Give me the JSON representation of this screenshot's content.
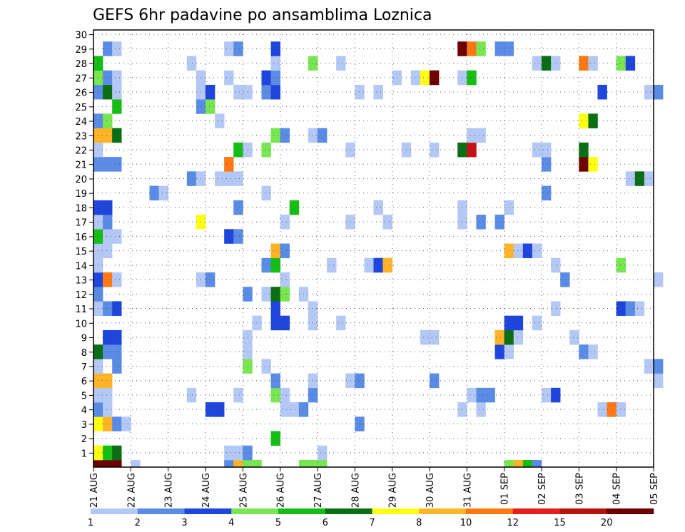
{
  "chart_data": {
    "type": "heatmap",
    "title": "GEFS 6hr padavine po ansamblima Loznica",
    "x_tick_labels": [
      "21 AUG",
      "22 AUG",
      "23 AUG",
      "24 AUG",
      "25 AUG",
      "26 AUG",
      "27 AUG",
      "28 AUG",
      "29 AUG",
      "30 AUG",
      "31 AUG",
      "01 SEP",
      "02 SEP",
      "03 SEP",
      "04 SEP",
      "05 SEP"
    ],
    "y_tick_labels": [
      "1",
      "2",
      "3",
      "4",
      "5",
      "6",
      "7",
      "8",
      "9",
      "10",
      "11",
      "12",
      "13",
      "14",
      "15",
      "16",
      "17",
      "18",
      "19",
      "20",
      "21",
      "22",
      "23",
      "24",
      "25",
      "26",
      "27",
      "28",
      "29",
      "30"
    ],
    "steps_per_day": 4,
    "n_members": 30,
    "grid": true,
    "legend": {
      "position": "bottom",
      "labels": [
        "1",
        "2",
        "3",
        "4",
        "5",
        "6",
        "7",
        "8",
        "10",
        "12",
        "15",
        "20"
      ],
      "colors": [
        "#b4c8f5",
        "#5a8ce6",
        "#1e46dc",
        "#78e650",
        "#14be14",
        "#0a6e14",
        "#ffff14",
        "#ffb428",
        "#ff7814",
        "#e61e1e",
        "#b4140a",
        "#6e0000"
      ]
    },
    "level_colors": {
      "1": "#b4c8f5",
      "2": "#5a8ce6",
      "3": "#1e46dc",
      "4": "#78e650",
      "5": "#14be14",
      "6": "#0a6e14",
      "7": "#ffff14",
      "8": "#ffb428",
      "9": "#ff7814",
      "10": "#c80f14",
      "11": "#6e0000"
    },
    "cells": [
      [
        0,
        0,
        11
      ],
      [
        1,
        0,
        11
      ],
      [
        2,
        0,
        11
      ],
      [
        4,
        0,
        1
      ],
      [
        14,
        0,
        2
      ],
      [
        15,
        0,
        8
      ],
      [
        16,
        0,
        4
      ],
      [
        17,
        0,
        4
      ],
      [
        22,
        0,
        4
      ],
      [
        23,
        0,
        4
      ],
      [
        24,
        0,
        4
      ],
      [
        44,
        0,
        4
      ],
      [
        45,
        0,
        8
      ],
      [
        46,
        0,
        5
      ],
      [
        47,
        0,
        2
      ],
      [
        0,
        1,
        7
      ],
      [
        1,
        1,
        5
      ],
      [
        2,
        1,
        6
      ],
      [
        14,
        1,
        1
      ],
      [
        15,
        1,
        1
      ],
      [
        16,
        1,
        2
      ],
      [
        24,
        1,
        1
      ],
      [
        19,
        2,
        5
      ],
      [
        0,
        3,
        7
      ],
      [
        1,
        3,
        8
      ],
      [
        2,
        3,
        2
      ],
      [
        3,
        3,
        1
      ],
      [
        28,
        3,
        2
      ],
      [
        0,
        4,
        2
      ],
      [
        1,
        4,
        1
      ],
      [
        12,
        4,
        3
      ],
      [
        13,
        4,
        3
      ],
      [
        20,
        4,
        1
      ],
      [
        21,
        4,
        1
      ],
      [
        22,
        4,
        2
      ],
      [
        39,
        4,
        1
      ],
      [
        41,
        4,
        1
      ],
      [
        54,
        4,
        1
      ],
      [
        55,
        4,
        9
      ],
      [
        56,
        4,
        1
      ],
      [
        0,
        5,
        1
      ],
      [
        1,
        5,
        1
      ],
      [
        10,
        5,
        1
      ],
      [
        15,
        5,
        1
      ],
      [
        19,
        5,
        4
      ],
      [
        20,
        5,
        1
      ],
      [
        23,
        5,
        2
      ],
      [
        40,
        5,
        1
      ],
      [
        41,
        5,
        2
      ],
      [
        42,
        5,
        2
      ],
      [
        48,
        5,
        1
      ],
      [
        49,
        5,
        3
      ],
      [
        0,
        6,
        8
      ],
      [
        1,
        6,
        8
      ],
      [
        19,
        6,
        2
      ],
      [
        23,
        6,
        1
      ],
      [
        27,
        6,
        1
      ],
      [
        28,
        6,
        2
      ],
      [
        36,
        6,
        2
      ],
      [
        60,
        6,
        1
      ],
      [
        0,
        7,
        1
      ],
      [
        2,
        7,
        2
      ],
      [
        16,
        7,
        4
      ],
      [
        18,
        7,
        1
      ],
      [
        59,
        7,
        1
      ],
      [
        60,
        7,
        2
      ],
      [
        0,
        8,
        6
      ],
      [
        1,
        8,
        2
      ],
      [
        2,
        8,
        2
      ],
      [
        16,
        8,
        1
      ],
      [
        43,
        8,
        3
      ],
      [
        44,
        8,
        1
      ],
      [
        52,
        8,
        2
      ],
      [
        53,
        8,
        1
      ],
      [
        1,
        9,
        3
      ],
      [
        2,
        9,
        3
      ],
      [
        16,
        9,
        1
      ],
      [
        35,
        9,
        1
      ],
      [
        36,
        9,
        1
      ],
      [
        43,
        9,
        8
      ],
      [
        44,
        9,
        6
      ],
      [
        45,
        9,
        1
      ],
      [
        51,
        9,
        1
      ],
      [
        17,
        10,
        1
      ],
      [
        19,
        10,
        3
      ],
      [
        20,
        10,
        3
      ],
      [
        23,
        10,
        1
      ],
      [
        26,
        10,
        1
      ],
      [
        44,
        10,
        3
      ],
      [
        45,
        10,
        3
      ],
      [
        47,
        10,
        1
      ],
      [
        0,
        11,
        1
      ],
      [
        1,
        11,
        2
      ],
      [
        2,
        11,
        3
      ],
      [
        19,
        11,
        3
      ],
      [
        23,
        11,
        1
      ],
      [
        49,
        11,
        1
      ],
      [
        56,
        11,
        3
      ],
      [
        57,
        11,
        2
      ],
      [
        58,
        11,
        1
      ],
      [
        0,
        12,
        2
      ],
      [
        16,
        12,
        2
      ],
      [
        18,
        12,
        1
      ],
      [
        19,
        12,
        6
      ],
      [
        20,
        12,
        4
      ],
      [
        22,
        12,
        1
      ],
      [
        0,
        13,
        3
      ],
      [
        1,
        13,
        9
      ],
      [
        2,
        13,
        1
      ],
      [
        11,
        13,
        1
      ],
      [
        12,
        13,
        2
      ],
      [
        20,
        13,
        1
      ],
      [
        50,
        13,
        2
      ],
      [
        60,
        13,
        1
      ],
      [
        0,
        14,
        1
      ],
      [
        18,
        14,
        2
      ],
      [
        19,
        14,
        5
      ],
      [
        25,
        14,
        1
      ],
      [
        29,
        14,
        1
      ],
      [
        30,
        14,
        3
      ],
      [
        31,
        14,
        8
      ],
      [
        49,
        14,
        1
      ],
      [
        56,
        14,
        4
      ],
      [
        0,
        15,
        1
      ],
      [
        1,
        15,
        1
      ],
      [
        19,
        15,
        8
      ],
      [
        20,
        15,
        2
      ],
      [
        44,
        15,
        8
      ],
      [
        45,
        15,
        1
      ],
      [
        46,
        15,
        3
      ],
      [
        47,
        15,
        1
      ],
      [
        0,
        16,
        5
      ],
      [
        1,
        16,
        1
      ],
      [
        2,
        16,
        1
      ],
      [
        14,
        16,
        3
      ],
      [
        15,
        16,
        2
      ],
      [
        0,
        17,
        1
      ],
      [
        1,
        17,
        2
      ],
      [
        11,
        17,
        7
      ],
      [
        20,
        17,
        1
      ],
      [
        27,
        17,
        1
      ],
      [
        31,
        17,
        1
      ],
      [
        39,
        17,
        1
      ],
      [
        41,
        17,
        2
      ],
      [
        43,
        17,
        2
      ],
      [
        0,
        18,
        3
      ],
      [
        1,
        18,
        3
      ],
      [
        15,
        18,
        2
      ],
      [
        21,
        18,
        5
      ],
      [
        30,
        18,
        1
      ],
      [
        39,
        18,
        1
      ],
      [
        44,
        18,
        1
      ],
      [
        6,
        19,
        2
      ],
      [
        7,
        19,
        1
      ],
      [
        18,
        19,
        1
      ],
      [
        48,
        19,
        2
      ],
      [
        10,
        20,
        2
      ],
      [
        11,
        20,
        1
      ],
      [
        13,
        20,
        1
      ],
      [
        14,
        20,
        1
      ],
      [
        15,
        20,
        1
      ],
      [
        57,
        20,
        1
      ],
      [
        58,
        20,
        6
      ],
      [
        59,
        20,
        1
      ],
      [
        0,
        21,
        2
      ],
      [
        1,
        21,
        2
      ],
      [
        2,
        21,
        2
      ],
      [
        14,
        21,
        9
      ],
      [
        48,
        21,
        2
      ],
      [
        52,
        21,
        11
      ],
      [
        53,
        21,
        7
      ],
      [
        0,
        22,
        1
      ],
      [
        15,
        22,
        5
      ],
      [
        16,
        22,
        1
      ],
      [
        18,
        22,
        4
      ],
      [
        27,
        22,
        1
      ],
      [
        33,
        22,
        1
      ],
      [
        36,
        22,
        1
      ],
      [
        39,
        22,
        6
      ],
      [
        40,
        22,
        10
      ],
      [
        47,
        22,
        1
      ],
      [
        48,
        22,
        1
      ],
      [
        52,
        22,
        6
      ],
      [
        0,
        23,
        8
      ],
      [
        1,
        23,
        8
      ],
      [
        2,
        23,
        6
      ],
      [
        19,
        23,
        4
      ],
      [
        20,
        23,
        2
      ],
      [
        23,
        23,
        1
      ],
      [
        24,
        23,
        2
      ],
      [
        40,
        23,
        1
      ],
      [
        41,
        23,
        1
      ],
      [
        0,
        24,
        2
      ],
      [
        1,
        24,
        4
      ],
      [
        13,
        24,
        1
      ],
      [
        52,
        24,
        7
      ],
      [
        53,
        24,
        6
      ],
      [
        2,
        25,
        5
      ],
      [
        11,
        25,
        2
      ],
      [
        12,
        25,
        4
      ],
      [
        0,
        26,
        2
      ],
      [
        1,
        26,
        6
      ],
      [
        2,
        26,
        1
      ],
      [
        11,
        26,
        1
      ],
      [
        12,
        26,
        3
      ],
      [
        15,
        26,
        1
      ],
      [
        16,
        26,
        1
      ],
      [
        18,
        26,
        2
      ],
      [
        19,
        26,
        3
      ],
      [
        28,
        26,
        1
      ],
      [
        30,
        26,
        1
      ],
      [
        54,
        26,
        3
      ],
      [
        59,
        26,
        1
      ],
      [
        60,
        26,
        2
      ],
      [
        0,
        27,
        4
      ],
      [
        1,
        27,
        2
      ],
      [
        2,
        27,
        1
      ],
      [
        11,
        27,
        1
      ],
      [
        14,
        27,
        1
      ],
      [
        18,
        27,
        3
      ],
      [
        19,
        27,
        2
      ],
      [
        32,
        27,
        1
      ],
      [
        34,
        27,
        1
      ],
      [
        35,
        27,
        7
      ],
      [
        36,
        27,
        11
      ],
      [
        39,
        27,
        1
      ],
      [
        40,
        27,
        5
      ],
      [
        0,
        28,
        5
      ],
      [
        10,
        28,
        1
      ],
      [
        19,
        28,
        1
      ],
      [
        23,
        28,
        4
      ],
      [
        26,
        28,
        1
      ],
      [
        47,
        28,
        1
      ],
      [
        48,
        28,
        6
      ],
      [
        49,
        28,
        1
      ],
      [
        52,
        28,
        9
      ],
      [
        53,
        28,
        1
      ],
      [
        56,
        28,
        4
      ],
      [
        57,
        28,
        3
      ],
      [
        1,
        29,
        2
      ],
      [
        2,
        29,
        1
      ],
      [
        14,
        29,
        1
      ],
      [
        15,
        29,
        2
      ],
      [
        19,
        29,
        3
      ],
      [
        39,
        29,
        11
      ],
      [
        40,
        29,
        9
      ],
      [
        41,
        29,
        4
      ],
      [
        43,
        29,
        2
      ],
      [
        44,
        29,
        2
      ]
    ]
  }
}
